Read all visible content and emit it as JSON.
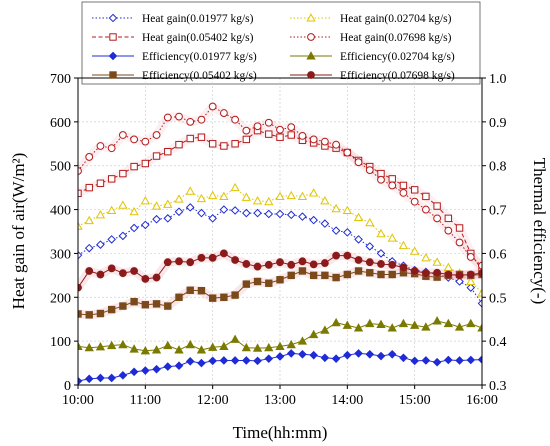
{
  "chart_data": {
    "type": "line",
    "xlabel": "Time(hh:mm)",
    "ylabel": "Heat gain of air(W/m²)",
    "y2label": "Thermal efficiency(-)",
    "x_ticks": [
      "10:00",
      "11:00",
      "12:00",
      "13:00",
      "14:00",
      "15:00",
      "16:00"
    ],
    "x_range": [
      0,
      360
    ],
    "ylim": [
      0,
      700
    ],
    "y_ticks": [
      0,
      100,
      200,
      300,
      400,
      500,
      600,
      700
    ],
    "y2lim": [
      0.3,
      1.0
    ],
    "y2_ticks": [
      "0.3",
      "0.4",
      "0.5",
      "0.6",
      "0.7",
      "0.8",
      "0.9",
      "1.0"
    ],
    "x_minutes": [
      0,
      10,
      20,
      30,
      40,
      50,
      60,
      70,
      80,
      90,
      100,
      110,
      120,
      130,
      140,
      150,
      160,
      170,
      180,
      190,
      200,
      210,
      220,
      230,
      240,
      250,
      260,
      270,
      280,
      290,
      300,
      310,
      320,
      330,
      340,
      350,
      360
    ],
    "legend_position": "top",
    "series": [
      {
        "name": "Heat gain(0.01977 kg/s)",
        "axis": "left",
        "color": "#1f2bd6",
        "marker": "diamond-open",
        "dash": "dot",
        "values": [
          296,
          312,
          320,
          332,
          340,
          358,
          365,
          378,
          380,
          395,
          405,
          392,
          380,
          400,
          398,
          392,
          392,
          390,
          390,
          388,
          384,
          376,
          368,
          352,
          348,
          332,
          316,
          300,
          282,
          272,
          262,
          258,
          252,
          245,
          236,
          222,
          186
        ]
      },
      {
        "name": "Heat gain(0.02704 kg/s)",
        "axis": "left",
        "color": "#e0c400",
        "marker": "triangle-open",
        "dash": "dot",
        "values": [
          362,
          375,
          388,
          398,
          410,
          395,
          420,
          408,
          412,
          424,
          442,
          425,
          432,
          430,
          450,
          428,
          420,
          418,
          430,
          432,
          430,
          438,
          420,
          402,
          398,
          382,
          370,
          345,
          335,
          318,
          305,
          290,
          280,
          268,
          255,
          236,
          210
        ]
      },
      {
        "name": "Heat gain(0.05402 kg/s)",
        "axis": "left",
        "color": "#b31b1b",
        "marker": "square-open",
        "dash": "dash",
        "values": [
          437,
          450,
          460,
          470,
          482,
          498,
          505,
          522,
          532,
          548,
          562,
          565,
          550,
          545,
          550,
          560,
          580,
          572,
          565,
          570,
          558,
          552,
          545,
          540,
          530,
          512,
          498,
          482,
          470,
          455,
          445,
          430,
          408,
          380,
          358,
          300,
          262
        ]
      },
      {
        "name": "Heat gain(0.07698 kg/s)",
        "axis": "left",
        "color": "#b31b1b",
        "marker": "circle-open",
        "dash": "dot",
        "values": [
          488,
          520,
          545,
          540,
          570,
          560,
          555,
          570,
          610,
          612,
          600,
          605,
          635,
          620,
          605,
          580,
          590,
          598,
          582,
          588,
          568,
          560,
          555,
          548,
          530,
          508,
          490,
          468,
          455,
          438,
          418,
          400,
          380,
          352,
          325,
          292,
          272
        ]
      },
      {
        "name": "Efficiency(0.01977 kg/s)",
        "axis": "right",
        "color": "#1f2bd6",
        "marker": "diamond-filled",
        "dash": "solid",
        "values": [
          0.309,
          0.314,
          0.316,
          0.316,
          0.322,
          0.33,
          0.333,
          0.336,
          0.342,
          0.344,
          0.354,
          0.35,
          0.355,
          0.356,
          0.356,
          0.356,
          0.355,
          0.36,
          0.365,
          0.372,
          0.37,
          0.368,
          0.362,
          0.36,
          0.368,
          0.372,
          0.37,
          0.366,
          0.37,
          0.362,
          0.355,
          0.356,
          0.352,
          0.357,
          0.356,
          0.357,
          0.358
        ]
      },
      {
        "name": "Efficiency(0.02704 kg/s)",
        "axis": "right",
        "color": "#7a7a00",
        "marker": "triangle-filled",
        "dash": "solid",
        "values": [
          0.388,
          0.385,
          0.387,
          0.39,
          0.392,
          0.382,
          0.378,
          0.38,
          0.39,
          0.38,
          0.392,
          0.38,
          0.386,
          0.388,
          0.404,
          0.385,
          0.384,
          0.385,
          0.388,
          0.392,
          0.4,
          0.415,
          0.425,
          0.442,
          0.436,
          0.43,
          0.44,
          0.438,
          0.43,
          0.44,
          0.436,
          0.432,
          0.446,
          0.44,
          0.432,
          0.44,
          0.43
        ]
      },
      {
        "name": "Efficiency(0.05402 kg/s)",
        "axis": "right",
        "color": "#7a4a1a",
        "marker": "square-filled",
        "dash": "solid",
        "values": [
          0.462,
          0.46,
          0.463,
          0.472,
          0.48,
          0.49,
          0.483,
          0.485,
          0.48,
          0.5,
          0.516,
          0.515,
          0.498,
          0.5,
          0.505,
          0.53,
          0.536,
          0.532,
          0.54,
          0.55,
          0.56,
          0.55,
          0.55,
          0.545,
          0.552,
          0.56,
          0.556,
          0.552,
          0.552,
          0.556,
          0.554,
          0.548,
          0.546,
          0.55,
          0.552,
          0.55,
          0.552
        ]
      },
      {
        "name": "Efficiency(0.07698 kg/s)",
        "axis": "right",
        "color": "#8b1a1a",
        "marker": "circle-filled",
        "dash": "solid",
        "values": [
          0.522,
          0.56,
          0.552,
          0.566,
          0.555,
          0.56,
          0.542,
          0.545,
          0.58,
          0.582,
          0.58,
          0.59,
          0.59,
          0.6,
          0.585,
          0.576,
          0.57,
          0.574,
          0.58,
          0.574,
          0.582,
          0.575,
          0.578,
          0.595,
          0.595,
          0.585,
          0.58,
          0.576,
          0.574,
          0.568,
          0.56,
          0.555,
          0.556,
          0.552,
          0.55,
          0.552,
          0.555
        ]
      }
    ]
  }
}
